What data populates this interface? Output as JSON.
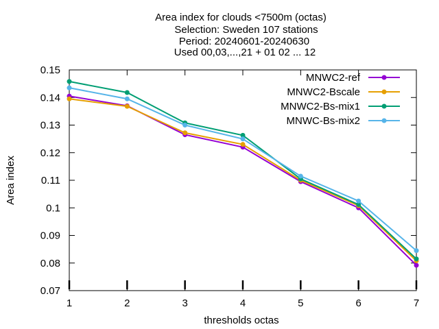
{
  "chart_data": {
    "type": "line",
    "title_lines": [
      "Area index  for clouds <7500m (octas)",
      "Selection: Sweden    107 stations",
      "Period: 20240601-20240630",
      "Used 00,03,...,21 + 01 02 ... 12"
    ],
    "xlabel": "thresholds octas",
    "ylabel": "Area index",
    "x": [
      1,
      2,
      3,
      4,
      5,
      6,
      7
    ],
    "xlim": [
      1,
      7
    ],
    "ylim": [
      0.07,
      0.15
    ],
    "x_ticks": [
      "1",
      "2",
      "3",
      "4",
      "5",
      "6",
      "7"
    ],
    "y_ticks": [
      {
        "value": 0.07,
        "label": "0.07"
      },
      {
        "value": 0.08,
        "label": "0.08"
      },
      {
        "value": 0.09,
        "label": "0.09"
      },
      {
        "value": 0.1,
        "label": "0.1"
      },
      {
        "value": 0.11,
        "label": "0.11"
      },
      {
        "value": 0.12,
        "label": "0.12"
      },
      {
        "value": 0.13,
        "label": "0.13"
      },
      {
        "value": 0.14,
        "label": "0.14"
      },
      {
        "value": 0.15,
        "label": "0.15"
      }
    ],
    "grid": false,
    "legend_position": "top-right",
    "series": [
      {
        "name": "MNWC2-ref",
        "color": "#9400d3",
        "values": [
          0.1405,
          0.137,
          0.1265,
          0.122,
          0.1095,
          0.1,
          0.0792
        ]
      },
      {
        "name": "MNWC2-Bscale",
        "color": "#e69f00",
        "values": [
          0.1395,
          0.1368,
          0.1272,
          0.123,
          0.11,
          0.1008,
          0.0808
        ]
      },
      {
        "name": "MNWC2-Bs-mix1",
        "color": "#009e73",
        "values": [
          0.1458,
          0.1418,
          0.1308,
          0.1263,
          0.1105,
          0.1012,
          0.0815
        ]
      },
      {
        "name": "MNWC-Bs-mix2",
        "color": "#56b4e9",
        "values": [
          0.1435,
          0.1395,
          0.13,
          0.125,
          0.1115,
          0.1025,
          0.0845
        ]
      }
    ]
  }
}
